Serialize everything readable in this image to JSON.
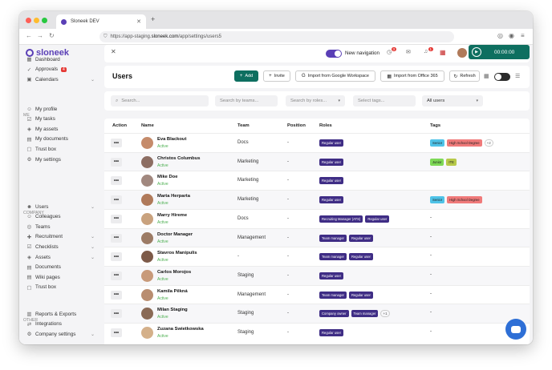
{
  "browser": {
    "tab_title": "Sloneek DEV",
    "url_prefix": "https://app-staging.",
    "url_host": "sloneek.com",
    "url_path": "/app/settings/users5"
  },
  "sidebar": {
    "logo": "sloneek",
    "top_items": [
      {
        "label": "Dashboard",
        "icon": "grid-icon"
      },
      {
        "label": "Approvals",
        "icon": "check-icon",
        "badge": "4"
      },
      {
        "label": "Calendars",
        "icon": "calendar-icon",
        "chevron": true
      }
    ],
    "me_label": "ME",
    "me_items": [
      {
        "label": "My profile",
        "icon": "user-icon"
      },
      {
        "label": "My tasks",
        "icon": "tasks-icon"
      },
      {
        "label": "My assets",
        "icon": "assets-icon"
      },
      {
        "label": "My documents",
        "icon": "document-icon"
      },
      {
        "label": "Trust box",
        "icon": "box-icon"
      },
      {
        "label": "My settings",
        "icon": "gear-icon"
      }
    ],
    "company_label": "COMPANY",
    "company_items": [
      {
        "label": "Users",
        "icon": "users-icon",
        "chevron": true
      },
      {
        "label": "Colleagues",
        "icon": "colleagues-icon"
      },
      {
        "label": "Teams",
        "icon": "teams-icon"
      },
      {
        "label": "Recruitment",
        "icon": "recruitment-icon",
        "chevron": true
      },
      {
        "label": "Checklists",
        "icon": "checklist-icon",
        "chevron": true
      },
      {
        "label": "Assets",
        "icon": "assets-icon",
        "chevron": true
      },
      {
        "label": "Documents",
        "icon": "document-icon"
      },
      {
        "label": "Wiki pages",
        "icon": "wiki-icon"
      },
      {
        "label": "Trust box",
        "icon": "box-icon"
      }
    ],
    "other_label": "OTHER",
    "other_items": [
      {
        "label": "Reports & Exports",
        "icon": "report-icon"
      },
      {
        "label": "Integrations",
        "icon": "integration-icon"
      },
      {
        "label": "Company settings",
        "icon": "gear-icon",
        "chevron": true
      }
    ]
  },
  "topbar": {
    "new_navigation_label": "New navigation",
    "timer": "00:00:00",
    "notif_badge_1": "3",
    "notif_badge_2": "1"
  },
  "header": {
    "title": "Users",
    "add_label": "Add",
    "invite_label": "Invite",
    "google_label": "Import from Google Workspace",
    "office_label": "Import from Office 365",
    "refresh_label": "Refresh"
  },
  "filters": {
    "search_placeholder": "Search...",
    "teams_placeholder": "Search by teams...",
    "roles_placeholder": "Search by roles...",
    "tags_placeholder": "Select tags...",
    "users_select": "All users"
  },
  "table": {
    "columns": [
      "Action",
      "Name",
      "Team",
      "Position",
      "Roles",
      "Tags"
    ],
    "rows": [
      {
        "name": "Eva Blackout",
        "status": "Active",
        "team": "Docs",
        "position": "-",
        "roles": [
          "Regular user"
        ],
        "tags": [
          {
            "label": "Senior",
            "color": "#4fc3e8"
          },
          {
            "label": "High School Degree",
            "color": "#f07a7a"
          }
        ],
        "extra": "+2"
      },
      {
        "name": "Christos Columbus",
        "status": "Active",
        "team": "Marketing",
        "position": "-",
        "roles": [
          "Regular user"
        ],
        "tags": [
          {
            "label": "Junior",
            "color": "#7ed957"
          },
          {
            "label": "ITE",
            "color": "#b7c94a"
          }
        ],
        "extra": ""
      },
      {
        "name": "Mike Doe",
        "status": "Active",
        "team": "Marketing",
        "position": "-",
        "roles": [
          "Regular user"
        ],
        "tags": [],
        "extra": ""
      },
      {
        "name": "Marta Herparta",
        "status": "Active",
        "team": "Marketing",
        "position": "-",
        "roles": [
          "Regular user"
        ],
        "tags": [
          {
            "label": "Senior",
            "color": "#4fc3e8"
          },
          {
            "label": "High School Degree",
            "color": "#f07a7a"
          }
        ],
        "extra": ""
      },
      {
        "name": "Marry Hireme",
        "status": "Active",
        "team": "Docs",
        "position": "-",
        "roles": [
          "Recruiting Manager (ATS)",
          "Regular user"
        ],
        "tags": [],
        "extra": "",
        "dash": "-"
      },
      {
        "name": "Doctor Manager",
        "status": "Active",
        "team": "Management",
        "position": "-",
        "roles": [
          "Team manager",
          "Regular user"
        ],
        "tags": [],
        "extra": "",
        "dash": "-"
      },
      {
        "name": "Stavros Manipulis",
        "status": "Active",
        "team": "-",
        "position": "-",
        "roles": [
          "Team manager",
          "Regular user"
        ],
        "tags": [],
        "extra": "",
        "dash": "-"
      },
      {
        "name": "Carlos Morojos",
        "status": "Active",
        "team": "Staging",
        "position": "-",
        "roles": [
          "Regular user"
        ],
        "tags": [],
        "extra": "",
        "dash": "-"
      },
      {
        "name": "Kamila Pěkná",
        "status": "Active",
        "team": "Management",
        "position": "-",
        "roles": [
          "Team manager",
          "Regular user"
        ],
        "tags": [],
        "extra": "",
        "dash": "-"
      },
      {
        "name": "Milan Staging",
        "status": "Active",
        "team": "Staging",
        "position": "-",
        "roles": [
          "Company owner",
          "Team manager"
        ],
        "role_extra": "+1",
        "tags": [],
        "extra": "",
        "dash": "-"
      },
      {
        "name": "Zuzana Swietkowska",
        "status": "Active",
        "team": "Staging",
        "position": "-",
        "roles": [
          "Regular user"
        ],
        "tags": [],
        "extra": "",
        "dash": "-"
      }
    ]
  },
  "colors": {
    "brand": "#5a3fb6",
    "primary_button": "#0e6f60",
    "role_badge": "#3f2d85",
    "active_status": "#4caf50",
    "chat": "#2e6fd6"
  }
}
